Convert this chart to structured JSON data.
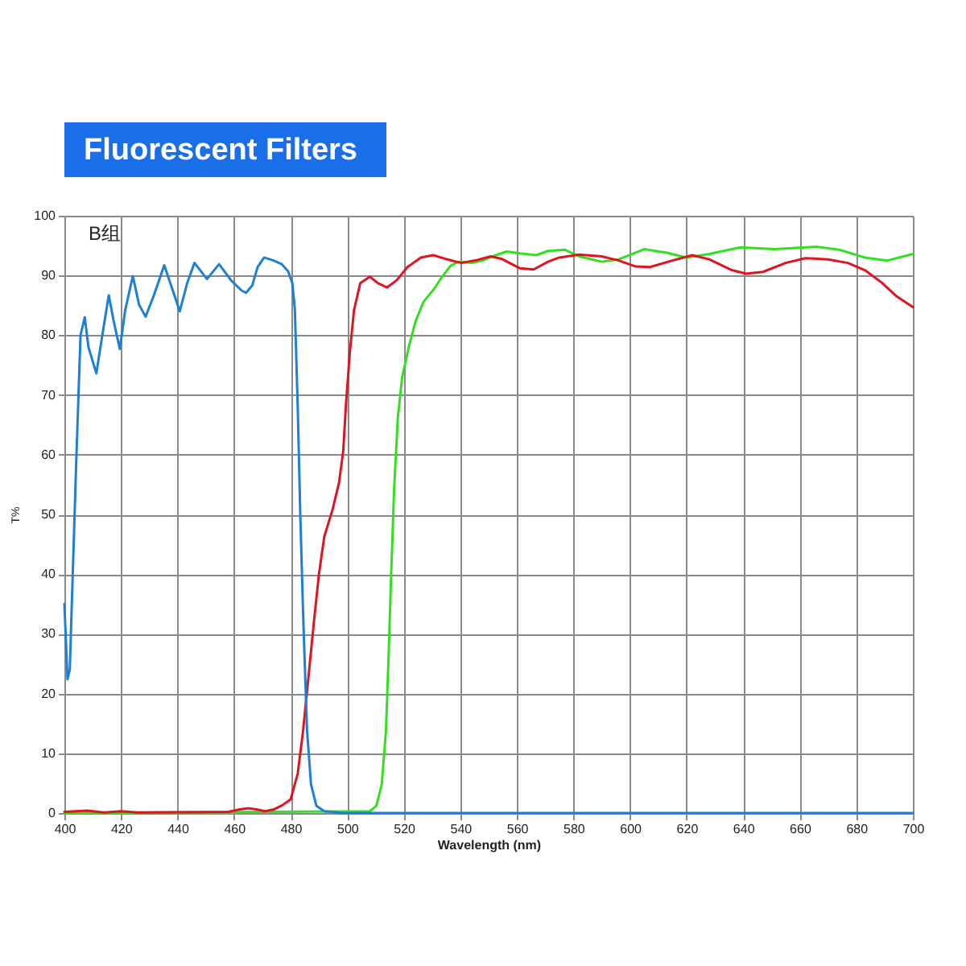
{
  "chart_data": {
    "type": "line",
    "title": "Fluorescent Filters",
    "xlabel": "Wavelength (nm)",
    "ylabel": "T%",
    "annotations": [
      "B组"
    ],
    "xlim": [
      400,
      700
    ],
    "ylim": [
      0,
      100
    ],
    "xticks": [
      400,
      420,
      440,
      460,
      480,
      500,
      520,
      540,
      560,
      580,
      600,
      620,
      640,
      660,
      680,
      700
    ],
    "yticks": [
      0,
      10,
      20,
      30,
      40,
      50,
      60,
      70,
      80,
      90,
      100
    ],
    "grid": true,
    "series": [
      {
        "color": "#33e01f",
        "x": [
          400,
          508,
          510.3,
          512.2,
          513.7,
          514.7,
          515.6,
          516.6,
          517.9,
          519.4,
          521.7,
          524.2,
          527,
          530.8,
          533.6,
          536.5,
          539.3,
          544.1,
          547.9,
          552.6,
          556.4,
          561.1,
          566.8,
          571,
          577,
          582,
          590,
          596,
          605,
          613,
          620,
          628,
          639,
          651,
          666,
          674,
          683,
          691,
          700
        ],
        "values": [
          0,
          0.3,
          1.2,
          4.8,
          13.8,
          27.3,
          40.9,
          54.4,
          66.2,
          72.9,
          77.9,
          82.4,
          85.6,
          87.8,
          89.8,
          91.6,
          92.3,
          92.1,
          92.5,
          93.4,
          94,
          93.7,
          93.4,
          94.1,
          94.3,
          93.2,
          92.3,
          92.7,
          94.4,
          93.8,
          93,
          93.6,
          94.7,
          94.4,
          94.8,
          94.3,
          93,
          92.5,
          93.6
        ]
      },
      {
        "color": "#e0141e",
        "x": [
          400,
          408,
          414,
          420,
          426,
          458,
          462,
          465,
          468,
          471,
          474,
          477,
          480,
          482.5,
          484.4,
          486.3,
          488.2,
          490,
          491.9,
          494.8,
          497.1,
          498.6,
          499.5,
          500.9,
          502.4,
          504.6,
          508,
          510.9,
          514.1,
          517.5,
          521.3,
          526,
          530.4,
          534.6,
          540.3,
          546,
          550.7,
          554.5,
          561.1,
          565.9,
          571,
          575,
          582,
          590,
          596,
          602,
          607,
          615,
          622,
          628,
          636,
          641,
          647,
          655,
          662,
          670,
          677,
          683,
          689,
          694,
          700
        ],
        "values": [
          0.2,
          0.4,
          0.1,
          0.3,
          0.1,
          0.2,
          0.6,
          0.8,
          0.6,
          0.3,
          0.6,
          1.3,
          2.3,
          6.6,
          13.8,
          22.8,
          31.9,
          40,
          46.3,
          50.8,
          55.3,
          60.7,
          68,
          77,
          84.2,
          88.7,
          89.8,
          88.7,
          88,
          89.2,
          91.4,
          93,
          93.4,
          92.8,
          92.1,
          92.6,
          93.2,
          92.8,
          91.2,
          91,
          92.3,
          93,
          93.5,
          93.2,
          92.5,
          91.5,
          91.4,
          92.5,
          93.4,
          92.7,
          90.9,
          90.3,
          90.6,
          92.1,
          92.9,
          92.7,
          92.1,
          90.9,
          88.8,
          86.6,
          84.7
        ]
      },
      {
        "color": "#1e7fd6",
        "x": [
          400,
          401.1,
          401.9,
          404.2,
          405.7,
          407.2,
          408.5,
          411.3,
          413.6,
          415.7,
          417.4,
          419.6,
          421.5,
          424.2,
          426.4,
          428.7,
          431.5,
          435.3,
          438.1,
          440.8,
          443.4,
          446,
          450.4,
          454.7,
          458.9,
          462.6,
          464.2,
          466.4,
          468.3,
          470.6,
          474,
          476.8,
          479.1,
          480.6,
          481.5,
          482.5,
          483.4,
          484.5,
          485.8,
          487.2,
          489.1,
          491.9,
          498.5,
          700
        ],
        "values": [
          35,
          22.4,
          24,
          59,
          80,
          83,
          78,
          73.6,
          80.6,
          86.7,
          82.4,
          77.7,
          84.2,
          89.9,
          85.1,
          83.1,
          86.5,
          91.7,
          87.8,
          84,
          88.7,
          92.1,
          89.4,
          91.9,
          89.2,
          87.5,
          87.1,
          88.3,
          91.4,
          93,
          92.5,
          91.9,
          90.7,
          88.7,
          84.2,
          68,
          50,
          31.9,
          13.8,
          4.8,
          1.2,
          0.3,
          0,
          0
        ]
      }
    ]
  }
}
